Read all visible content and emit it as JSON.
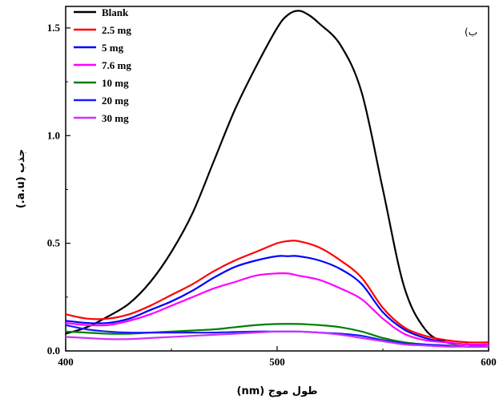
{
  "chart_data": {
    "type": "line",
    "xlabel": "طول موج (nm)",
    "ylabel": "جذب (a.u.)",
    "panel_label": "(ب",
    "xlim": [
      400,
      600
    ],
    "ylim": [
      0,
      1.6
    ],
    "x_ticks": [
      400,
      500,
      600
    ],
    "x_tick_labels": [
      "400",
      "500",
      "600"
    ],
    "y_ticks": [
      0.0,
      0.5,
      1.0,
      1.5
    ],
    "y_tick_labels": [
      "0.0",
      "0.5",
      "1.0",
      "1.5"
    ],
    "grid": false,
    "legend_position": "top-left",
    "series": [
      {
        "name": "Blank",
        "color": "#000000",
        "x": [
          400,
          410,
          420,
          430,
          440,
          450,
          460,
          470,
          480,
          490,
          500,
          505,
          510,
          515,
          520,
          530,
          540,
          550,
          560,
          570,
          580,
          590,
          600
        ],
        "y": [
          0.08,
          0.11,
          0.16,
          0.22,
          0.32,
          0.46,
          0.64,
          0.88,
          1.12,
          1.32,
          1.5,
          1.56,
          1.58,
          1.56,
          1.52,
          1.42,
          1.2,
          0.75,
          0.3,
          0.1,
          0.04,
          0.03,
          0.02
        ]
      },
      {
        "name": "2.5 mg",
        "color": "#ff0000",
        "x": [
          400,
          410,
          420,
          430,
          440,
          450,
          460,
          470,
          480,
          490,
          500,
          505,
          510,
          520,
          530,
          540,
          550,
          560,
          570,
          580,
          590,
          600
        ],
        "y": [
          0.17,
          0.15,
          0.15,
          0.17,
          0.21,
          0.26,
          0.31,
          0.37,
          0.42,
          0.46,
          0.5,
          0.51,
          0.51,
          0.48,
          0.42,
          0.34,
          0.2,
          0.11,
          0.07,
          0.05,
          0.04,
          0.04
        ]
      },
      {
        "name": "5 mg",
        "color": "#0000ff",
        "x": [
          400,
          410,
          420,
          430,
          440,
          450,
          460,
          470,
          480,
          490,
          500,
          505,
          510,
          520,
          530,
          540,
          550,
          560,
          570,
          580,
          590,
          600
        ],
        "y": [
          0.14,
          0.13,
          0.13,
          0.15,
          0.19,
          0.23,
          0.28,
          0.34,
          0.39,
          0.42,
          0.44,
          0.44,
          0.44,
          0.42,
          0.38,
          0.31,
          0.18,
          0.1,
          0.06,
          0.04,
          0.03,
          0.03
        ]
      },
      {
        "name": "7.6 mg",
        "color": "#ff00ff",
        "x": [
          400,
          410,
          420,
          430,
          440,
          450,
          460,
          470,
          480,
          490,
          500,
          505,
          510,
          520,
          530,
          540,
          550,
          560,
          570,
          580,
          590,
          600
        ],
        "y": [
          0.13,
          0.12,
          0.12,
          0.14,
          0.17,
          0.21,
          0.25,
          0.29,
          0.32,
          0.35,
          0.36,
          0.36,
          0.35,
          0.33,
          0.29,
          0.24,
          0.15,
          0.08,
          0.05,
          0.04,
          0.03,
          0.03
        ]
      },
      {
        "name": "10 mg",
        "color": "#008000",
        "x": [
          400,
          410,
          420,
          430,
          440,
          450,
          460,
          470,
          480,
          490,
          500,
          510,
          520,
          530,
          540,
          550,
          560,
          570,
          580,
          590,
          600
        ],
        "y": [
          0.09,
          0.085,
          0.08,
          0.08,
          0.085,
          0.09,
          0.095,
          0.1,
          0.11,
          0.12,
          0.125,
          0.125,
          0.12,
          0.11,
          0.09,
          0.06,
          0.04,
          0.03,
          0.025,
          0.02,
          0.02
        ]
      },
      {
        "name": "20 mg",
        "color": "#1a1aff",
        "x": [
          400,
          410,
          420,
          430,
          440,
          450,
          460,
          470,
          480,
          490,
          500,
          510,
          520,
          530,
          540,
          550,
          560,
          570,
          580,
          590,
          600
        ],
        "y": [
          0.12,
          0.1,
          0.09,
          0.085,
          0.085,
          0.085,
          0.085,
          0.085,
          0.088,
          0.09,
          0.09,
          0.09,
          0.085,
          0.08,
          0.07,
          0.05,
          0.035,
          0.03,
          0.025,
          0.02,
          0.02
        ]
      },
      {
        "name": "30 mg",
        "color": "#cc33ff",
        "x": [
          400,
          410,
          420,
          430,
          440,
          450,
          460,
          470,
          480,
          490,
          500,
          510,
          520,
          530,
          540,
          550,
          560,
          570,
          580,
          590,
          600
        ],
        "y": [
          0.065,
          0.06,
          0.055,
          0.055,
          0.06,
          0.065,
          0.07,
          0.075,
          0.08,
          0.085,
          0.09,
          0.09,
          0.085,
          0.075,
          0.06,
          0.045,
          0.03,
          0.025,
          0.02,
          0.02,
          0.02
        ]
      }
    ]
  }
}
